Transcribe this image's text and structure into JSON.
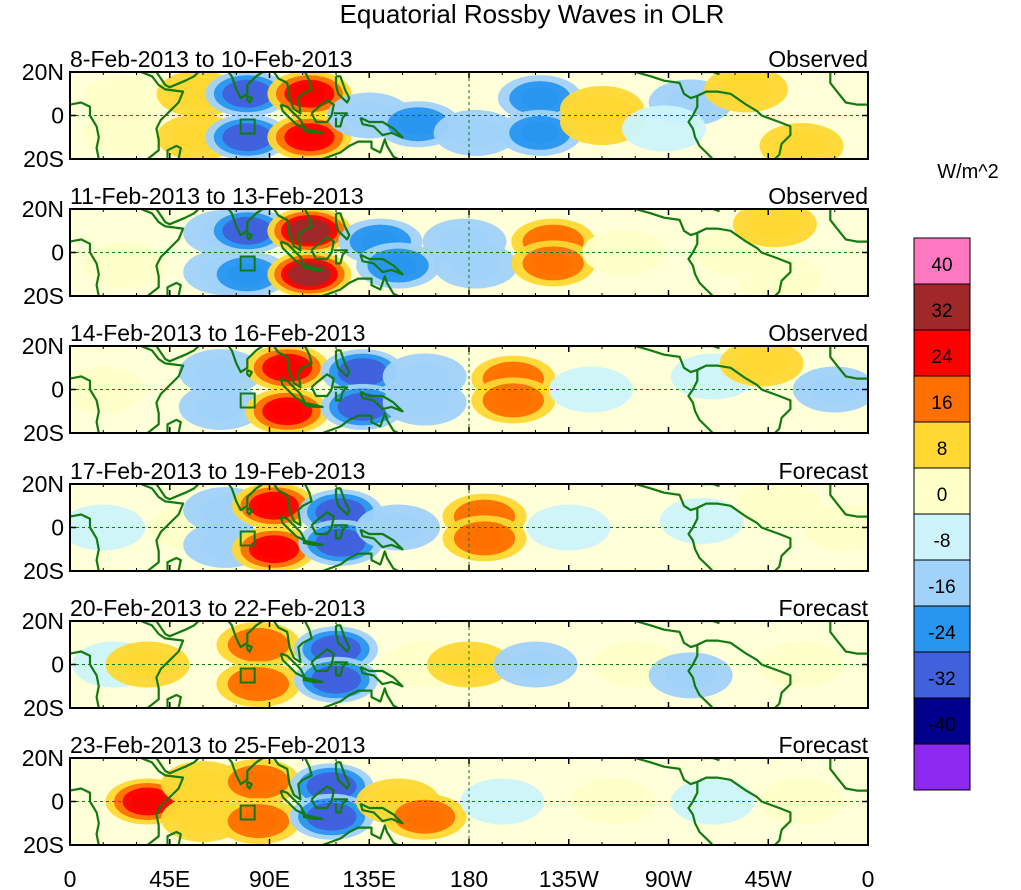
{
  "chart_data": {
    "type": "heatmap",
    "title": "Equatorial Rossby Waves in OLR",
    "units": "W/m^2",
    "lat_ticks": [
      "20N",
      "0",
      "20S"
    ],
    "lon_ticks": [
      "0",
      "45E",
      "90E",
      "135E",
      "180",
      "135W",
      "90W",
      "45W",
      "0"
    ],
    "lon_range": [
      0,
      360
    ],
    "lat_range": [
      -20,
      20
    ],
    "panels": [
      {
        "dates": "8-Feb-2013 to 10-Feb-2013",
        "status": "Observed"
      },
      {
        "dates": "11-Feb-2013 to 13-Feb-2013",
        "status": "Observed"
      },
      {
        "dates": "14-Feb-2013 to 16-Feb-2013",
        "status": "Observed"
      },
      {
        "dates": "17-Feb-2013 to 19-Feb-2013",
        "status": "Forecast"
      },
      {
        "dates": "20-Feb-2013 to 22-Feb-2013",
        "status": "Forecast"
      },
      {
        "dates": "23-Feb-2013 to 25-Feb-2013",
        "status": "Forecast"
      }
    ],
    "colorbar": {
      "levels": [
        {
          "color": "#ff77c0"
        },
        {
          "label": "40",
          "color": "#a02828"
        },
        {
          "label": "32",
          "color": "#ff0000"
        },
        {
          "label": "24",
          "color": "#ff7000"
        },
        {
          "label": "16",
          "color": "#ffd832"
        },
        {
          "label": "8",
          "color": "#ffffc8"
        },
        {
          "label": "0",
          "color": "#ccf4fa"
        },
        {
          "label": "-8",
          "color": "#a0d2fa"
        },
        {
          "label": "-16",
          "color": "#2896f0"
        },
        {
          "label": "-24",
          "color": "#4060dc"
        },
        {
          "label": "-32",
          "color": "#00008c"
        },
        {
          "label": "-40",
          "color": "#8c28f0"
        }
      ]
    },
    "anomalies": [
      [
        {
          "lon": 25,
          "lat": 8,
          "v": 6
        },
        {
          "lon": 25,
          "lat": -8,
          "v": 6
        },
        {
          "lon": 58,
          "lat": 10,
          "v": 12
        },
        {
          "lon": 58,
          "lat": -10,
          "v": 12
        },
        {
          "lon": 80,
          "lat": 10,
          "v": -24
        },
        {
          "lon": 80,
          "lat": -10,
          "v": -24
        },
        {
          "lon": 108,
          "lat": 10,
          "v": 30
        },
        {
          "lon": 108,
          "lat": -10,
          "v": 30
        },
        {
          "lon": 135,
          "lat": 0,
          "v": -14
        },
        {
          "lon": 157,
          "lat": -4,
          "v": -16
        },
        {
          "lon": 183,
          "lat": -8,
          "v": -12
        },
        {
          "lon": 212,
          "lat": 8,
          "v": -20
        },
        {
          "lon": 212,
          "lat": -8,
          "v": -18
        },
        {
          "lon": 240,
          "lat": 3,
          "v": 10
        },
        {
          "lon": 240,
          "lat": -3,
          "v": 10
        },
        {
          "lon": 280,
          "lat": 6,
          "v": -8
        },
        {
          "lon": 268,
          "lat": -6,
          "v": -6
        },
        {
          "lon": 305,
          "lat": 12,
          "v": 10
        },
        {
          "lon": 330,
          "lat": -14,
          "v": 10
        }
      ],
      [
        {
          "lon": 25,
          "lat": -6,
          "v": 5
        },
        {
          "lon": 70,
          "lat": 9,
          "v": -10
        },
        {
          "lon": 70,
          "lat": -9,
          "v": -10
        },
        {
          "lon": 80,
          "lat": 10,
          "v": -24
        },
        {
          "lon": 80,
          "lat": -10,
          "v": -20
        },
        {
          "lon": 108,
          "lat": 10,
          "v": 34
        },
        {
          "lon": 108,
          "lat": -10,
          "v": 34
        },
        {
          "lon": 140,
          "lat": 5,
          "v": -22
        },
        {
          "lon": 148,
          "lat": -6,
          "v": -18
        },
        {
          "lon": 178,
          "lat": 5,
          "v": -14
        },
        {
          "lon": 183,
          "lat": -6,
          "v": -12
        },
        {
          "lon": 218,
          "lat": 5,
          "v": 20
        },
        {
          "lon": 218,
          "lat": -5,
          "v": 20
        },
        {
          "lon": 250,
          "lat": 0,
          "v": 4
        },
        {
          "lon": 300,
          "lat": 0,
          "v": 4
        },
        {
          "lon": 318,
          "lat": 13,
          "v": 10
        },
        {
          "lon": 320,
          "lat": -12,
          "v": 6
        }
      ],
      [
        {
          "lon": 15,
          "lat": 0,
          "v": 6
        },
        {
          "lon": 68,
          "lat": 8,
          "v": -12
        },
        {
          "lon": 68,
          "lat": -8,
          "v": -12
        },
        {
          "lon": 98,
          "lat": 10,
          "v": 30
        },
        {
          "lon": 98,
          "lat": -10,
          "v": 30
        },
        {
          "lon": 132,
          "lat": 8,
          "v": -26
        },
        {
          "lon": 132,
          "lat": -8,
          "v": -26
        },
        {
          "lon": 160,
          "lat": 6,
          "v": -8
        },
        {
          "lon": 160,
          "lat": -6,
          "v": -8
        },
        {
          "lon": 200,
          "lat": 5,
          "v": 18
        },
        {
          "lon": 200,
          "lat": -5,
          "v": 18
        },
        {
          "lon": 235,
          "lat": 0,
          "v": -6
        },
        {
          "lon": 290,
          "lat": 6,
          "v": -6
        },
        {
          "lon": 312,
          "lat": 12,
          "v": 8
        },
        {
          "lon": 345,
          "lat": 0,
          "v": -8
        }
      ],
      [
        {
          "lon": 15,
          "lat": 0,
          "v": -6
        },
        {
          "lon": 55,
          "lat": 0,
          "v": 6
        },
        {
          "lon": 70,
          "lat": 8,
          "v": -10
        },
        {
          "lon": 70,
          "lat": -8,
          "v": -10
        },
        {
          "lon": 92,
          "lat": 10,
          "v": 26
        },
        {
          "lon": 92,
          "lat": -10,
          "v": 26
        },
        {
          "lon": 122,
          "lat": 7,
          "v": -26
        },
        {
          "lon": 122,
          "lat": -7,
          "v": -26
        },
        {
          "lon": 148,
          "lat": 0,
          "v": -8
        },
        {
          "lon": 187,
          "lat": 5,
          "v": 16
        },
        {
          "lon": 187,
          "lat": -5,
          "v": 16
        },
        {
          "lon": 225,
          "lat": 0,
          "v": -6
        },
        {
          "lon": 285,
          "lat": 3,
          "v": -6
        },
        {
          "lon": 320,
          "lat": 10,
          "v": 6
        },
        {
          "lon": 350,
          "lat": 0,
          "v": 4
        }
      ],
      [
        {
          "lon": 20,
          "lat": 0,
          "v": -6
        },
        {
          "lon": 35,
          "lat": 0,
          "v": 12
        },
        {
          "lon": 85,
          "lat": 9,
          "v": 20
        },
        {
          "lon": 85,
          "lat": -9,
          "v": 20
        },
        {
          "lon": 120,
          "lat": 7,
          "v": -26
        },
        {
          "lon": 120,
          "lat": -7,
          "v": -26
        },
        {
          "lon": 160,
          "lat": 0,
          "v": 4
        },
        {
          "lon": 180,
          "lat": 0,
          "v": 12
        },
        {
          "lon": 210,
          "lat": 0,
          "v": -10
        },
        {
          "lon": 255,
          "lat": 0,
          "v": 4
        },
        {
          "lon": 280,
          "lat": -5,
          "v": -8
        },
        {
          "lon": 330,
          "lat": 0,
          "v": 5
        }
      ],
      [
        {
          "lon": 35,
          "lat": 0,
          "v": 26
        },
        {
          "lon": 60,
          "lat": 8,
          "v": 12
        },
        {
          "lon": 60,
          "lat": -8,
          "v": 12
        },
        {
          "lon": 85,
          "lat": 9,
          "v": 16
        },
        {
          "lon": 85,
          "lat": -9,
          "v": 16
        },
        {
          "lon": 118,
          "lat": 7,
          "v": -24
        },
        {
          "lon": 118,
          "lat": -7,
          "v": -24
        },
        {
          "lon": 148,
          "lat": 0,
          "v": 8
        },
        {
          "lon": 160,
          "lat": -7,
          "v": 20
        },
        {
          "lon": 195,
          "lat": 0,
          "v": -6
        },
        {
          "lon": 245,
          "lat": 0,
          "v": 6
        },
        {
          "lon": 290,
          "lat": 0,
          "v": -6
        },
        {
          "lon": 330,
          "lat": 0,
          "v": 4
        }
      ]
    ]
  }
}
